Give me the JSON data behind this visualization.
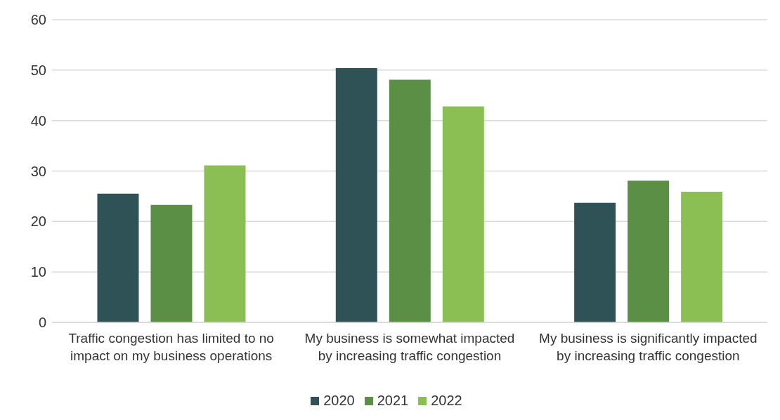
{
  "chart_data": {
    "type": "bar",
    "categories": [
      "Traffic congestion has limited to no impact on my business operations",
      "My business is somewhat impacted by increasing traffic congestion",
      "My business is significantly impacted by increasing traffic congestion"
    ],
    "series": [
      {
        "name": "2020",
        "color": "#2f5257",
        "values": [
          25.5,
          50.4,
          23.7
        ]
      },
      {
        "name": "2021",
        "color": "#5b8f46",
        "values": [
          23.3,
          48.1,
          28.1
        ]
      },
      {
        "name": "2022",
        "color": "#8bbf53",
        "values": [
          31.1,
          42.8,
          25.9
        ]
      }
    ],
    "ylim": [
      0,
      60
    ],
    "yticks": [
      0,
      10,
      20,
      30,
      40,
      50,
      60
    ],
    "grid": "y",
    "legend": "bottom"
  }
}
